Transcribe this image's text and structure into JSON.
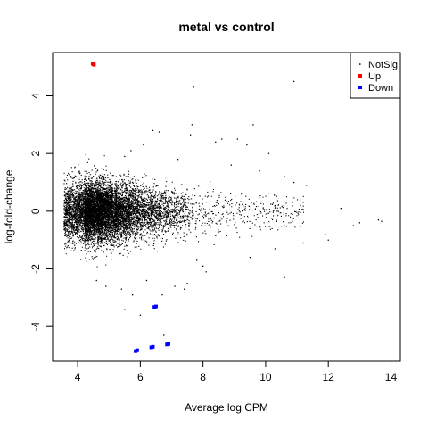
{
  "chart_data": {
    "type": "scatter",
    "title": "metal vs control",
    "xlabel": "Average log CPM",
    "ylabel": "log-fold-change",
    "xlim": [
      3.2,
      14.3
    ],
    "ylim": [
      -5.2,
      5.5
    ],
    "x_ticks": [
      4,
      6,
      8,
      10,
      12,
      14
    ],
    "y_ticks": [
      -4,
      -2,
      0,
      2,
      4
    ],
    "grid": false,
    "legend_position": "top-right",
    "legend": [
      {
        "label": "NotSig",
        "color": "#000000",
        "marker": "dot"
      },
      {
        "label": "Up",
        "color": "#ff0000",
        "marker": "square"
      },
      {
        "label": "Down",
        "color": "#0000ff",
        "marker": "square"
      }
    ],
    "series": [
      {
        "name": "Up",
        "color": "#ff0000",
        "points": [
          [
            4.5,
            5.1
          ],
          [
            4.52,
            5.08
          ],
          [
            4.48,
            5.12
          ]
        ]
      },
      {
        "name": "Down",
        "color": "#0000ff",
        "points": [
          [
            5.85,
            -4.85
          ],
          [
            5.9,
            -4.82
          ],
          [
            6.35,
            -4.72
          ],
          [
            6.4,
            -4.7
          ],
          [
            6.85,
            -4.62
          ],
          [
            6.9,
            -4.6
          ],
          [
            6.45,
            -3.32
          ],
          [
            6.5,
            -3.3
          ]
        ]
      },
      {
        "name": "NotSig",
        "color": "#000000",
        "points": [
          [
            10.9,
            4.5
          ],
          [
            7.7,
            4.3
          ],
          [
            9.6,
            3.0
          ],
          [
            7.65,
            3.0
          ],
          [
            8.6,
            2.5
          ],
          [
            8.4,
            2.4
          ],
          [
            6.1,
            2.3
          ],
          [
            5.7,
            2.1
          ],
          [
            6.4,
            2.8
          ],
          [
            6.6,
            2.75
          ],
          [
            7.6,
            2.65
          ],
          [
            9.1,
            2.5
          ],
          [
            9.4,
            2.3
          ],
          [
            10.1,
            2.0
          ],
          [
            10.9,
            1.0
          ],
          [
            11.3,
            0.9
          ],
          [
            12.4,
            0.1
          ],
          [
            13.6,
            -0.3
          ],
          [
            13.7,
            -0.35
          ],
          [
            12.8,
            -0.5
          ],
          [
            12.0,
            -1.0
          ],
          [
            11.9,
            -0.8
          ],
          [
            13.0,
            -0.4
          ],
          [
            10.6,
            -2.3
          ],
          [
            8.1,
            -2.1
          ],
          [
            7.8,
            -1.7
          ],
          [
            7.4,
            -2.7
          ],
          [
            7.1,
            -2.6
          ],
          [
            6.7,
            -2.9
          ],
          [
            6.2,
            -2.4
          ],
          [
            5.4,
            -2.7
          ],
          [
            5.5,
            -3.4
          ],
          [
            5.75,
            -2.9
          ],
          [
            6.0,
            -3.6
          ],
          [
            6.75,
            -4.3
          ],
          [
            4.6,
            -2.4
          ],
          [
            4.9,
            -2.6
          ],
          [
            7.5,
            -2.5
          ],
          [
            8.0,
            -1.9
          ],
          [
            9.5,
            -1.6
          ],
          [
            10.3,
            -1.3
          ],
          [
            11.2,
            -1.1
          ],
          [
            10.6,
            1.2
          ],
          [
            9.8,
            1.4
          ],
          [
            8.9,
            1.6
          ],
          [
            7.2,
            1.8
          ],
          [
            5.5,
            1.9
          ]
        ]
      }
    ],
    "notsig_cloud": {
      "count": 9000,
      "seed": 12345,
      "x_min": 3.55,
      "x_peak": 4.2,
      "x_tail_to": 11.2,
      "lfc_sd_at_low_cpm": 0.55,
      "lfc_sd_at_high_cpm": 0.28
    }
  }
}
